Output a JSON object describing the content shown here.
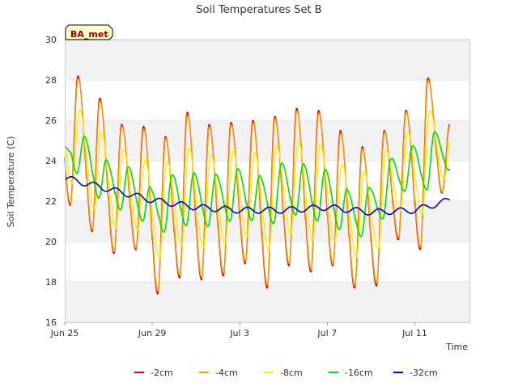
{
  "chart_data": {
    "type": "line",
    "title": "Soil Temperatures Set B",
    "xlabel": "Time",
    "ylabel": "Soil Temperature (C)",
    "badge": "BA_met",
    "ylim": [
      16,
      30
    ],
    "xlim": [
      0,
      18.5
    ],
    "yticks": [
      16,
      18,
      20,
      22,
      24,
      26,
      28,
      30
    ],
    "xticks": [
      {
        "label": "Jun 25",
        "day": 0
      },
      {
        "label": "Jun 29",
        "day": 4
      },
      {
        "label": "Jul 3",
        "day": 8
      },
      {
        "label": "Jul 7",
        "day": 12
      },
      {
        "label": "Jul 11",
        "day": 16
      }
    ],
    "grid": "horizontal bands",
    "legend_position": "bottom",
    "x_start": 0.0,
    "x_end": 17.6,
    "daily": [
      {
        "day": 0,
        "min": 21.8,
        "max": 28.2
      },
      {
        "day": 1,
        "min": 20.5,
        "max": 27.1
      },
      {
        "day": 2,
        "min": 19.4,
        "max": 25.8
      },
      {
        "day": 3,
        "min": 19.6,
        "max": 25.7
      },
      {
        "day": 4,
        "min": 17.4,
        "max": 25.2
      },
      {
        "day": 5,
        "min": 18.2,
        "max": 26.4
      },
      {
        "day": 6,
        "min": 18.1,
        "max": 25.8
      },
      {
        "day": 7,
        "min": 18.3,
        "max": 25.9
      },
      {
        "day": 8,
        "min": 18.9,
        "max": 26.0
      },
      {
        "day": 9,
        "min": 17.7,
        "max": 26.2
      },
      {
        "day": 10,
        "min": 18.8,
        "max": 26.6
      },
      {
        "day": 11,
        "min": 18.5,
        "max": 26.5
      },
      {
        "day": 12,
        "min": 18.8,
        "max": 25.5
      },
      {
        "day": 13,
        "min": 17.7,
        "max": 24.7
      },
      {
        "day": 14,
        "min": 17.8,
        "max": 25.5
      },
      {
        "day": 15,
        "min": 20.1,
        "max": 26.5
      },
      {
        "day": 16,
        "min": 19.6,
        "max": 28.1
      },
      {
        "day": 17,
        "min": 22.4,
        "max": 25.8
      }
    ],
    "series": [
      {
        "name": "-2cm",
        "color": "#dd0000",
        "damp": 1.0,
        "lag": 0.0,
        "width": 1.4
      },
      {
        "name": "-4cm",
        "color": "#ff9900",
        "damp": 0.97,
        "lag": 0.01,
        "width": 1.4
      },
      {
        "name": "-8cm",
        "color": "#ffee00",
        "damp": 0.6,
        "lag": 0.08,
        "width": 1.4
      },
      {
        "name": "-16cm",
        "color": "#00dd00",
        "damp": 0.33,
        "lag": 0.3,
        "width": 1.6
      },
      {
        "name": "-32cm",
        "color": "#0000cc",
        "damp": 0.0,
        "lag": 0.0,
        "width": 1.6
      }
    ],
    "deep_trend": [
      {
        "day": 0,
        "value": 23.15
      },
      {
        "day": 2,
        "value": 22.6
      },
      {
        "day": 4,
        "value": 22.05
      },
      {
        "day": 6,
        "value": 21.7
      },
      {
        "day": 8,
        "value": 21.55
      },
      {
        "day": 10,
        "value": 21.55
      },
      {
        "day": 12,
        "value": 21.7
      },
      {
        "day": 14,
        "value": 21.45
      },
      {
        "day": 16,
        "value": 21.55
      },
      {
        "day": 17.6,
        "value": 22.05
      }
    ]
  }
}
